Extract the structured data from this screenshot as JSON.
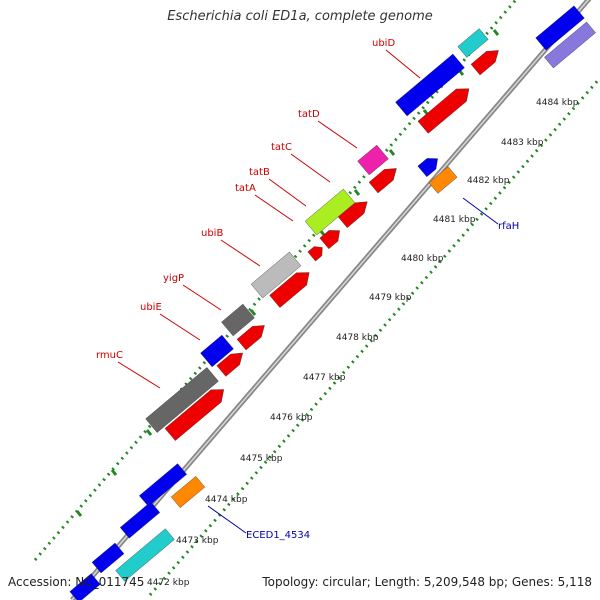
{
  "title": "Escherichia coli ED1a, complete genome",
  "accession": "Accession: NC_011745",
  "topology": "Topology: circular; Length: 5,209,548 bp; Genes: 5,118",
  "colors": {
    "blue": "#0000ee",
    "red": "#ee0000",
    "darkgray": "#666666",
    "lightgray": "#bbbbbb",
    "lime": "#aaee22",
    "magenta": "#ee22aa",
    "cyan": "#22cccc",
    "orange": "#ff8800",
    "lavender": "#8877dd",
    "backbone": "#888888",
    "ruler": "#228822",
    "label_red": "#cc0000",
    "label_blue": "#0000aa"
  },
  "ticks": [
    {
      "label": "4472 kbp"
    },
    {
      "label": "4473 kbp"
    },
    {
      "label": "4474 kbp"
    },
    {
      "label": "4475 kbp"
    },
    {
      "label": "4476 kbp"
    },
    {
      "label": "4477 kbp"
    },
    {
      "label": "4478 kbp"
    },
    {
      "label": "4479 kbp"
    },
    {
      "label": "4480 kbp"
    },
    {
      "label": "4481 kbp"
    },
    {
      "label": "4482 kbp"
    },
    {
      "label": "4483 kbp"
    },
    {
      "label": "4484 kbp"
    }
  ],
  "gene_labels": [
    {
      "text": "ubiD",
      "color": "label_red"
    },
    {
      "text": "tatD",
      "color": "label_red"
    },
    {
      "text": "tatC",
      "color": "label_red"
    },
    {
      "text": "tatB",
      "color": "label_red"
    },
    {
      "text": "tatA",
      "color": "label_red"
    },
    {
      "text": "ubiB",
      "color": "label_red"
    },
    {
      "text": "yigP",
      "color": "label_red"
    },
    {
      "text": "ubiE",
      "color": "label_red"
    },
    {
      "text": "rmuC",
      "color": "label_red"
    },
    {
      "text": "rfaH",
      "color": "label_blue"
    },
    {
      "text": "ECED1_4534",
      "color": "label_blue"
    }
  ]
}
